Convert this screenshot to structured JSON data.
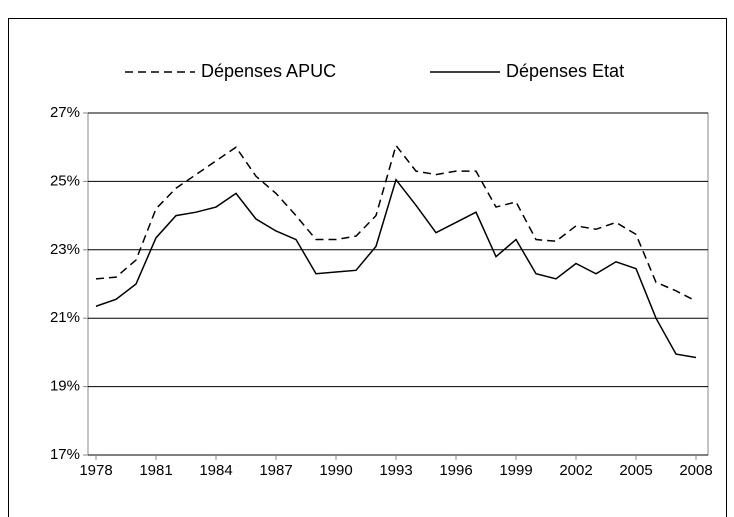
{
  "chart_data": {
    "type": "line",
    "x": [
      1978,
      1979,
      1980,
      1981,
      1982,
      1983,
      1984,
      1985,
      1986,
      1987,
      1988,
      1989,
      1990,
      1991,
      1992,
      1993,
      1994,
      1995,
      1996,
      1997,
      1998,
      1999,
      2000,
      2001,
      2002,
      2003,
      2004,
      2005,
      2006,
      2007,
      2008
    ],
    "series": [
      {
        "name": "Dépenses APUC",
        "color": "#000000",
        "dashed": true,
        "values": [
          22.15,
          22.2,
          22.7,
          24.2,
          24.8,
          25.2,
          25.6,
          26.0,
          25.15,
          24.65,
          24.0,
          23.3,
          23.3,
          23.4,
          24.0,
          26.05,
          25.3,
          25.2,
          25.3,
          25.3,
          24.25,
          24.4,
          23.3,
          23.25,
          23.7,
          23.6,
          23.8,
          23.45,
          22.05,
          21.8,
          21.5
        ]
      },
      {
        "name": "Dépenses Etat",
        "color": "#000000",
        "dashed": false,
        "values": [
          21.35,
          21.55,
          22.0,
          23.35,
          24.0,
          24.1,
          24.25,
          24.65,
          23.9,
          23.55,
          23.3,
          22.3,
          22.35,
          22.4,
          23.1,
          25.05,
          24.3,
          23.5,
          23.8,
          24.1,
          22.8,
          23.3,
          22.3,
          22.15,
          22.6,
          22.3,
          22.65,
          22.45,
          21.0,
          19.95,
          19.85
        ]
      }
    ],
    "xlim": [
      1977.6,
      2008.6
    ],
    "xticks": [
      1978,
      1981,
      1984,
      1987,
      1990,
      1993,
      1996,
      1999,
      2002,
      2005,
      2008
    ],
    "ylim": [
      17,
      27
    ],
    "yticks": [
      {
        "value": 17,
        "label": "17%"
      },
      {
        "value": 19,
        "label": "19%"
      },
      {
        "value": 21,
        "label": "21%"
      },
      {
        "value": 23,
        "label": "23%"
      },
      {
        "value": 25,
        "label": "25%"
      },
      {
        "value": 27,
        "label": "27%"
      }
    ],
    "grid": true
  }
}
